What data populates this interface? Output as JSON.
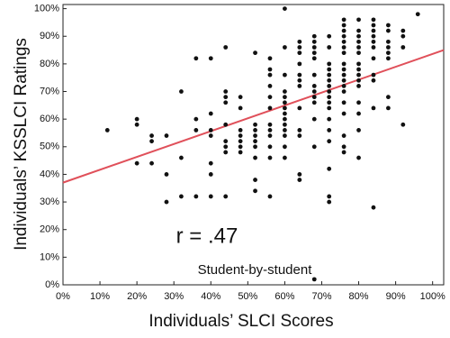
{
  "chart_data": {
    "type": "scatter",
    "x_label": "Individuals’ SLCI Scores",
    "y_label": "Individuals’ KSSLCI Ratings",
    "annotations": [
      "r = .47",
      "Student-by-student"
    ],
    "color": "#111111",
    "trend_line": {
      "x": [
        0,
        103
      ],
      "y": [
        37,
        85
      ],
      "color": "#e0505a"
    },
    "xlim": [
      0,
      103
    ],
    "ylim": [
      0,
      101.5
    ],
    "xticks": [
      {
        "value": 0,
        "label": "0%"
      },
      {
        "value": 10,
        "label": "10%"
      },
      {
        "value": 20,
        "label": "20%"
      },
      {
        "value": 30,
        "label": "30%"
      },
      {
        "value": 40,
        "label": "40%"
      },
      {
        "value": 50,
        "label": "50%"
      },
      {
        "value": 60,
        "label": "60%"
      },
      {
        "value": 70,
        "label": "70%"
      },
      {
        "value": 80,
        "label": "80%"
      },
      {
        "value": 90,
        "label": "90%"
      },
      {
        "value": 100,
        "label": "100%"
      }
    ],
    "yticks": [
      {
        "value": 0,
        "label": "0%"
      },
      {
        "value": 10,
        "label": "10%"
      },
      {
        "value": 20,
        "label": "20%"
      },
      {
        "value": 30,
        "label": "30%"
      },
      {
        "value": 40,
        "label": "40%"
      },
      {
        "value": 50,
        "label": "50%"
      },
      {
        "value": 60,
        "label": "60%"
      },
      {
        "value": 70,
        "label": "70%"
      },
      {
        "value": 80,
        "label": "80%"
      },
      {
        "value": 90,
        "label": "90%"
      },
      {
        "value": 100,
        "label": "100%"
      }
    ],
    "x": [
      12,
      20,
      20,
      20,
      24,
      24,
      24,
      28,
      28,
      28,
      32,
      32,
      32,
      36,
      36,
      36,
      36,
      40,
      40,
      40,
      40,
      40,
      40,
      40,
      44,
      44,
      44,
      44,
      44,
      44,
      44,
      44,
      44,
      48,
      48,
      48,
      48,
      48,
      48,
      48,
      52,
      52,
      52,
      52,
      52,
      52,
      52,
      52,
      52,
      56,
      56,
      56,
      56,
      56,
      56,
      56,
      56,
      56,
      56,
      56,
      56,
      60,
      60,
      60,
      60,
      60,
      60,
      60,
      60,
      60,
      60,
      60,
      60,
      60,
      60,
      64,
      64,
      64,
      64,
      64,
      64,
      64,
      64,
      64,
      64,
      64,
      64,
      68,
      68,
      68,
      68,
      68,
      68,
      68,
      68,
      68,
      68,
      68,
      68,
      68,
      72,
      72,
      72,
      72,
      72,
      72,
      72,
      72,
      72,
      72,
      72,
      72,
      72,
      72,
      72,
      72,
      72,
      76,
      76,
      76,
      76,
      76,
      76,
      76,
      76,
      76,
      76,
      76,
      76,
      76,
      76,
      76,
      76,
      76,
      76,
      80,
      80,
      80,
      80,
      80,
      80,
      80,
      80,
      80,
      80,
      80,
      80,
      80,
      80,
      80,
      84,
      84,
      84,
      84,
      84,
      84,
      84,
      84,
      84,
      84,
      84,
      88,
      88,
      88,
      88,
      88,
      88,
      88,
      88,
      92,
      92,
      92,
      92,
      96
    ],
    "y": [
      56,
      60,
      58,
      44,
      54,
      52,
      44,
      54,
      40,
      30,
      70,
      46,
      32,
      82,
      60,
      56,
      32,
      82,
      62,
      56,
      54,
      44,
      40,
      32,
      86,
      70,
      68,
      66,
      58,
      52,
      50,
      48,
      32,
      68,
      64,
      56,
      54,
      52,
      50,
      48,
      84,
      58,
      56,
      54,
      52,
      50,
      46,
      38,
      34,
      82,
      78,
      76,
      72,
      68,
      64,
      58,
      56,
      54,
      50,
      46,
      32,
      100,
      86,
      76,
      70,
      68,
      66,
      64,
      62,
      60,
      58,
      56,
      54,
      50,
      46,
      88,
      86,
      84,
      80,
      76,
      74,
      72,
      64,
      56,
      54,
      40,
      38,
      90,
      88,
      86,
      84,
      82,
      76,
      72,
      70,
      68,
      66,
      60,
      50,
      2,
      90,
      86,
      80,
      78,
      76,
      74,
      72,
      70,
      68,
      66,
      64,
      60,
      56,
      52,
      42,
      32,
      30,
      96,
      94,
      92,
      90,
      88,
      86,
      84,
      80,
      78,
      76,
      74,
      72,
      70,
      66,
      62,
      54,
      50,
      48,
      96,
      92,
      90,
      88,
      86,
      84,
      80,
      78,
      76,
      74,
      72,
      66,
      62,
      56,
      46,
      96,
      94,
      92,
      90,
      88,
      86,
      82,
      76,
      74,
      64,
      28,
      94,
      92,
      88,
      86,
      84,
      82,
      68,
      64,
      92,
      90,
      86,
      58,
      98
    ]
  }
}
